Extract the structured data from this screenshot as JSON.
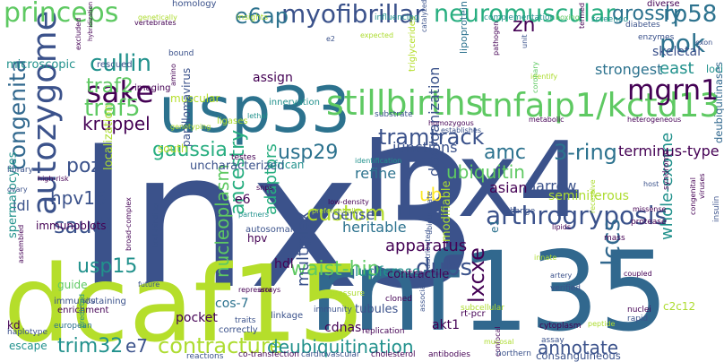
{
  "title": "",
  "palette": {
    "background": "#ffffff",
    "colors": [
      "#440154",
      "#3b528b",
      "#2c728e",
      "#21918c",
      "#28ae80",
      "#5ec962",
      "#addc30",
      "#fde725"
    ]
  },
  "words": [
    {
      "text": "lnx3",
      "color": "#3b528b"
    },
    {
      "text": "devaney",
      "color": "#21918c"
    },
    {
      "text": "lnx4",
      "color": "#3b528b"
    },
    {
      "text": "rnf135",
      "color": "#31688e"
    },
    {
      "text": "dcaf15",
      "color": "#b5de2b"
    },
    {
      "text": "usp33",
      "color": "#2c728e"
    },
    {
      "text": "tnfaip1/kctd13",
      "color": "#5ec962"
    },
    {
      "text": "autozygome",
      "color": "#3b528b"
    },
    {
      "text": "stillbirths",
      "color": "#5ec962"
    },
    {
      "text": "mgrn1",
      "color": "#440154"
    },
    {
      "text": "deubiquitinases",
      "color": "#31688e"
    },
    {
      "text": "arthrogryposis",
      "color": "#3b528b"
    },
    {
      "text": "myofibrillar",
      "color": "#3b528b"
    },
    {
      "text": "neuromuscular",
      "color": "#28ae80"
    },
    {
      "text": "princeps",
      "color": "#5ec962"
    },
    {
      "text": "tramtrack",
      "color": "#3b528b"
    },
    {
      "text": "sake",
      "color": "#440154"
    },
    {
      "text": "cullin",
      "color": "#21918c"
    },
    {
      "text": "pok",
      "color": "#2c728e"
    },
    {
      "text": "traf5",
      "color": "#5ec962"
    },
    {
      "text": "traf2",
      "color": "#5ec962"
    },
    {
      "text": "e6ap",
      "color": "#2c728e"
    },
    {
      "text": "rp58",
      "color": "#2c728e"
    },
    {
      "text": "congenita",
      "color": "#31688e"
    },
    {
      "text": "gaussia",
      "color": "#28ae80"
    },
    {
      "text": "3-ring",
      "color": "#2c728e"
    },
    {
      "text": "grossly",
      "color": "#2c728e"
    },
    {
      "text": "usp29",
      "color": "#2c728e"
    },
    {
      "text": "amc",
      "color": "#2c728e"
    },
    {
      "text": "custom",
      "color": "#b5de2b"
    },
    {
      "text": "saudi",
      "color": "#3b528b"
    },
    {
      "text": "poz",
      "color": "#3b528b"
    },
    {
      "text": "lccs",
      "color": "#31688e"
    },
    {
      "text": "dubs",
      "color": "#3b528b"
    },
    {
      "text": "contracture",
      "color": "#addc30"
    },
    {
      "text": "trim32",
      "color": "#21918c"
    },
    {
      "text": "e7",
      "color": "#3b528b"
    },
    {
      "text": "usp15",
      "color": "#21918c"
    },
    {
      "text": "deubiquitination",
      "color": "#21918c"
    },
    {
      "text": "annotate",
      "color": "#3b528b"
    },
    {
      "text": "lxcxe",
      "color": "#440154"
    },
    {
      "text": "hpv16",
      "color": "#3b528b"
    },
    {
      "text": "ubiquitin",
      "color": "#5ec962"
    },
    {
      "text": "ub",
      "color": "#fde725"
    },
    {
      "text": "kruppel",
      "color": "#440154"
    },
    {
      "text": "zn",
      "color": "#440154"
    },
    {
      "text": "east",
      "color": "#21918c"
    },
    {
      "text": "loci",
      "color": "#21918c"
    },
    {
      "text": "nucleoplasm",
      "color": "#5ec962"
    },
    {
      "text": "waist-hip",
      "color": "#5ec962"
    },
    {
      "text": "ancestry",
      "color": "#28ae80"
    },
    {
      "text": "adaptors",
      "color": "#28ae80"
    },
    {
      "text": "multiplex",
      "color": "#3b528b"
    },
    {
      "text": "whole-exome",
      "color": "#21918c"
    },
    {
      "text": "apparatus",
      "color": "#440154"
    },
    {
      "text": "junctions",
      "color": "#3b528b"
    },
    {
      "text": "terminus-type",
      "color": "#440154"
    },
    {
      "text": "catalyzed",
      "color": "#3b528b"
    },
    {
      "text": "harrow",
      "color": "#3b528b"
    },
    {
      "text": "strongest",
      "color": "#2c728e"
    },
    {
      "text": "skeletal",
      "color": "#3b528b"
    },
    {
      "text": "uncharacterized",
      "color": "#3b528b"
    },
    {
      "text": "localization",
      "color": "#addc30"
    },
    {
      "text": "refine",
      "color": "#2c728e"
    },
    {
      "text": "dense",
      "color": "#3b528b"
    },
    {
      "text": "heritable",
      "color": "#2c728e"
    },
    {
      "text": "asian",
      "color": "#440154"
    },
    {
      "text": "seminiferous",
      "color": "#addc30"
    },
    {
      "text": "disorganization",
      "color": "#3b528b"
    },
    {
      "text": "consanguineous",
      "color": "#3b528b"
    },
    {
      "text": "luciferase",
      "color": "#21918c"
    },
    {
      "text": "contractile",
      "color": "#440154"
    },
    {
      "text": "assign",
      "color": "#440154"
    },
    {
      "text": "hdl",
      "color": "#440154"
    },
    {
      "text": "cos-7",
      "color": "#2c728e"
    },
    {
      "text": "pocket",
      "color": "#440154"
    },
    {
      "text": "tubules",
      "color": "#3b528b"
    },
    {
      "text": "cdnas",
      "color": "#440154"
    },
    {
      "text": "akt1",
      "color": "#440154"
    },
    {
      "text": "c2c12",
      "color": "#addc30"
    },
    {
      "text": "e6",
      "color": "#440154"
    },
    {
      "text": "hpv",
      "color": "#440154"
    },
    {
      "text": "south",
      "color": "#b5de2b"
    },
    {
      "text": "ldl",
      "color": "#3b528b"
    },
    {
      "text": "immunoblots",
      "color": "#440154"
    },
    {
      "text": "muscular",
      "color": "#b5de2b"
    },
    {
      "text": "microscopic",
      "color": "#21918c"
    },
    {
      "text": "homology",
      "color": "#3b528b"
    },
    {
      "text": "innervation",
      "color": "#21918c"
    },
    {
      "text": "african",
      "color": "#21918c"
    },
    {
      "text": "spermatocytes",
      "color": "#21918c"
    },
    {
      "text": "escape",
      "color": "#21918c"
    },
    {
      "text": "guide",
      "color": "#5ec962"
    },
    {
      "text": "haplotype",
      "color": "#3b528b"
    },
    {
      "text": "enrichment",
      "color": "#440154"
    },
    {
      "text": "european",
      "color": "#2c728e"
    },
    {
      "text": "immunostaining",
      "color": "#3b528b"
    },
    {
      "text": "kd",
      "color": "#440154"
    },
    {
      "text": "rt-pcr",
      "color": "#440154"
    },
    {
      "text": "modifiable",
      "color": "#addc30"
    },
    {
      "text": "e1",
      "color": "#2c728e"
    },
    {
      "text": "papillomavirus",
      "color": "#3b528b"
    },
    {
      "text": "ligases",
      "color": "#addc30"
    },
    {
      "text": "lipoprotein",
      "color": "#2c728e"
    },
    {
      "text": "triglycerides",
      "color": "#b5de2b"
    },
    {
      "text": "expected",
      "color": "#addc30"
    },
    {
      "text": "influencing",
      "color": "#21918c"
    },
    {
      "text": "complementation",
      "color": "#21918c"
    },
    {
      "text": "screened",
      "color": "#21918c"
    },
    {
      "text": "diabetes",
      "color": "#3b528b"
    },
    {
      "text": "enzymes",
      "color": "#3b528b"
    },
    {
      "text": "diverse",
      "color": "#440154"
    },
    {
      "text": "exon",
      "color": "#3b528b"
    },
    {
      "text": "insights",
      "color": "#addc30"
    },
    {
      "text": "genetically",
      "color": "#addc30"
    },
    {
      "text": "vertebrates",
      "color": "#440154"
    },
    {
      "text": "rescued",
      "color": "#3b528b"
    },
    {
      "text": "imaging",
      "color": "#440154"
    },
    {
      "text": "bound",
      "color": "#3b528b"
    },
    {
      "text": "hybridization",
      "color": "#440154"
    },
    {
      "text": "excluded",
      "color": "#440154"
    },
    {
      "text": "amino",
      "color": "#440154"
    },
    {
      "text": "lethal",
      "color": "#21918c"
    },
    {
      "text": "pathogen",
      "color": "#440154"
    },
    {
      "text": "termed",
      "color": "#440154"
    },
    {
      "text": "identify",
      "color": "#addc30"
    },
    {
      "text": "coronary",
      "color": "#5ec962"
    },
    {
      "text": "heterogeneous",
      "color": "#440154"
    },
    {
      "text": "metabolic",
      "color": "#440154"
    },
    {
      "text": "homozygous",
      "color": "#440154"
    },
    {
      "text": "substrate",
      "color": "#3b528b"
    },
    {
      "text": "identification",
      "color": "#21918c"
    },
    {
      "text": "testes",
      "color": "#440154"
    },
    {
      "text": "snps",
      "color": "#440154"
    },
    {
      "text": "partners",
      "color": "#21918c"
    },
    {
      "text": "autosomal",
      "color": "#3b528b"
    },
    {
      "text": "preferentially",
      "color": "#addc30"
    },
    {
      "text": "low-density",
      "color": "#440154"
    },
    {
      "text": "ubiquitinate",
      "color": "#3b528b"
    },
    {
      "text": "lipids",
      "color": "#440154"
    },
    {
      "text": "recessive",
      "color": "#addc30"
    },
    {
      "text": "protease",
      "color": "#440154"
    },
    {
      "text": "missense",
      "color": "#440154"
    },
    {
      "text": "host",
      "color": "#3b528b"
    },
    {
      "text": "mass",
      "color": "#440154"
    },
    {
      "text": "insulin",
      "color": "#3b528b"
    },
    {
      "text": "syndrome",
      "color": "#440154"
    },
    {
      "text": "viruses",
      "color": "#440154"
    },
    {
      "text": "congenital",
      "color": "#440154"
    },
    {
      "text": "change",
      "color": "#3b528b"
    },
    {
      "text": "subcellular",
      "color": "#addc30"
    },
    {
      "text": "innate",
      "color": "#addc30"
    },
    {
      "text": "coupled",
      "color": "#440154"
    },
    {
      "text": "artery",
      "color": "#3b528b"
    },
    {
      "text": "verified",
      "color": "#3b528b"
    },
    {
      "text": "cytoplasm",
      "color": "#440154"
    },
    {
      "text": "nuclei",
      "color": "#440154"
    },
    {
      "text": "rapid",
      "color": "#3b528b"
    },
    {
      "text": "peptide",
      "color": "#addc30"
    },
    {
      "text": "assay",
      "color": "#3b528b"
    },
    {
      "text": "confocal",
      "color": "#440154"
    },
    {
      "text": "association",
      "color": "#3b528b"
    },
    {
      "text": "replication",
      "color": "#440154"
    },
    {
      "text": "cloned",
      "color": "#440154"
    },
    {
      "text": "immunity",
      "color": "#3b528b"
    },
    {
      "text": "pressure",
      "color": "#addc30"
    },
    {
      "text": "linkage",
      "color": "#3b528b"
    },
    {
      "text": "repressor",
      "color": "#440154"
    },
    {
      "text": "traits",
      "color": "#3b528b"
    },
    {
      "text": "future",
      "color": "#3b528b"
    },
    {
      "text": "arrays",
      "color": "#440154"
    },
    {
      "text": "predicted",
      "color": "#21918c"
    },
    {
      "text": "correctly",
      "color": "#3b528b"
    },
    {
      "text": "reactions",
      "color": "#3b528b"
    },
    {
      "text": "co-transfection",
      "color": "#440154"
    },
    {
      "text": "cardiovascular",
      "color": "#3b528b"
    },
    {
      "text": "cholesterol",
      "color": "#440154"
    },
    {
      "text": "antibodies",
      "color": "#440154"
    },
    {
      "text": "northern",
      "color": "#3b528b"
    },
    {
      "text": "mucosal",
      "color": "#addc30"
    },
    {
      "text": "distributed",
      "color": "#3b528b"
    },
    {
      "text": "establishes",
      "color": "#3b528b"
    },
    {
      "text": "library",
      "color": "#3b528b"
    },
    {
      "text": "ovary",
      "color": "#3b528b"
    },
    {
      "text": "high-risk",
      "color": "#440154"
    },
    {
      "text": "broad-complex",
      "color": "#440154"
    },
    {
      "text": "lxxll-binding",
      "color": "#3b528b"
    },
    {
      "text": "genotyping",
      "color": "#addc30"
    },
    {
      "text": "situ",
      "color": "#3b528b"
    },
    {
      "text": "assembled",
      "color": "#440154"
    },
    {
      "text": "e2",
      "color": "#3b528b"
    },
    {
      "text": "unit",
      "color": "#3b528b"
    },
    {
      "text": "boxing",
      "color": "#5ec962"
    }
  ]
}
